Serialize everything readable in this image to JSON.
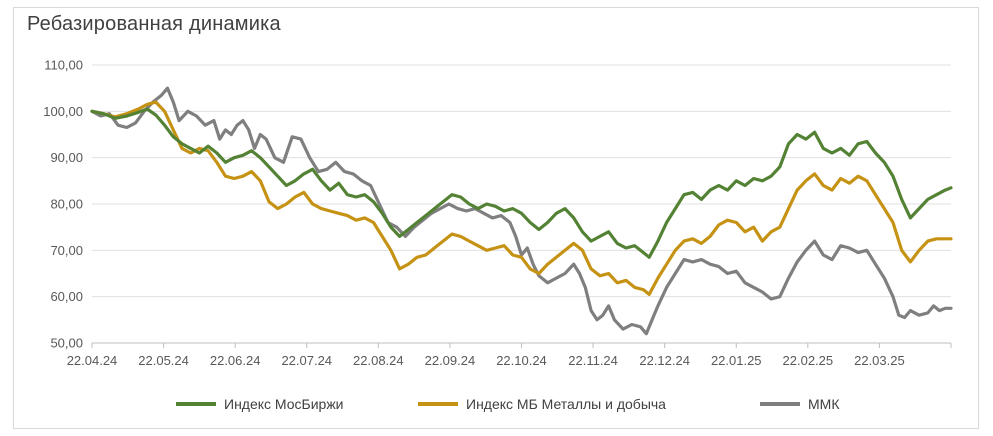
{
  "chart_data": {
    "type": "line",
    "title": "Ребазированная динамика",
    "xlabel": "",
    "ylabel": "",
    "ylim": [
      50,
      110
    ],
    "yticks": [
      "50,00",
      "60,00",
      "70,00",
      "80,00",
      "90,00",
      "100,00",
      "110,00"
    ],
    "x_tick_labels": [
      "22.04.24",
      "22.05.24",
      "22.06.24",
      "22.07.24",
      "22.08.24",
      "22.09.24",
      "22.10.24",
      "22.11.24",
      "22.12.24",
      "22.01.25",
      "22.02.25",
      "22.03.25"
    ],
    "grid": true,
    "legend_position": "bottom",
    "series": [
      {
        "name": "Индекс МосБиржи",
        "color": "#548235",
        "points": [
          [
            0,
            100
          ],
          [
            4,
            99.5
          ],
          [
            8,
            98.5
          ],
          [
            12,
            99
          ],
          [
            16,
            99.8
          ],
          [
            19,
            100.5
          ],
          [
            22,
            99.2
          ],
          [
            25,
            97
          ],
          [
            28,
            94.5
          ],
          [
            31,
            93
          ],
          [
            34,
            92
          ],
          [
            37,
            91
          ],
          [
            40,
            92.5
          ],
          [
            43,
            91
          ],
          [
            46,
            89
          ],
          [
            49,
            90
          ],
          [
            52,
            90.5
          ],
          [
            55,
            91.5
          ],
          [
            58,
            90
          ],
          [
            61,
            88
          ],
          [
            64,
            86
          ],
          [
            67,
            84
          ],
          [
            70,
            85
          ],
          [
            73,
            86.5
          ],
          [
            76,
            87.5
          ],
          [
            79,
            85
          ],
          [
            82,
            83
          ],
          [
            85,
            84.5
          ],
          [
            88,
            82
          ],
          [
            91,
            81.5
          ],
          [
            94,
            82
          ],
          [
            97,
            80.5
          ],
          [
            100,
            78
          ],
          [
            103,
            75
          ],
          [
            106,
            73
          ],
          [
            109,
            74.5
          ],
          [
            112,
            76
          ],
          [
            115,
            77.5
          ],
          [
            118,
            79
          ],
          [
            121,
            80.5
          ],
          [
            124,
            82
          ],
          [
            127,
            81.5
          ],
          [
            130,
            80
          ],
          [
            133,
            79
          ],
          [
            136,
            80
          ],
          [
            139,
            79.5
          ],
          [
            142,
            78.5
          ],
          [
            145,
            79
          ],
          [
            148,
            78
          ],
          [
            151,
            76
          ],
          [
            154,
            74.5
          ],
          [
            157,
            76
          ],
          [
            160,
            78
          ],
          [
            163,
            79
          ],
          [
            166,
            77
          ],
          [
            169,
            74
          ],
          [
            172,
            72
          ],
          [
            175,
            73
          ],
          [
            178,
            74
          ],
          [
            181,
            71.5
          ],
          [
            184,
            70.5
          ],
          [
            187,
            71
          ],
          [
            190,
            69.5
          ],
          [
            192,
            68.5
          ],
          [
            195,
            72
          ],
          [
            198,
            76
          ],
          [
            201,
            79
          ],
          [
            204,
            82
          ],
          [
            207,
            82.5
          ],
          [
            210,
            81
          ],
          [
            213,
            83
          ],
          [
            216,
            84
          ],
          [
            219,
            83
          ],
          [
            222,
            85
          ],
          [
            225,
            84
          ],
          [
            228,
            85.5
          ],
          [
            231,
            85
          ],
          [
            234,
            86
          ],
          [
            237,
            88
          ],
          [
            240,
            93
          ],
          [
            243,
            95
          ],
          [
            246,
            94
          ],
          [
            249,
            95.5
          ],
          [
            252,
            92
          ],
          [
            255,
            91
          ],
          [
            258,
            92
          ],
          [
            261,
            90.5
          ],
          [
            264,
            93
          ],
          [
            267,
            93.5
          ],
          [
            270,
            91
          ],
          [
            273,
            89
          ],
          [
            276,
            86
          ],
          [
            279,
            81
          ],
          [
            282,
            77
          ],
          [
            285,
            79
          ],
          [
            288,
            81
          ],
          [
            291,
            82
          ],
          [
            294,
            83
          ],
          [
            296,
            83.5
          ]
        ]
      },
      {
        "name": "Индекс МБ Металлы и добыча",
        "color": "#c69214",
        "points": [
          [
            0,
            100
          ],
          [
            4,
            99.5
          ],
          [
            8,
            98.8
          ],
          [
            12,
            99.5
          ],
          [
            16,
            100.5
          ],
          [
            19,
            101.5
          ],
          [
            22,
            102
          ],
          [
            25,
            100
          ],
          [
            28,
            96
          ],
          [
            31,
            92
          ],
          [
            34,
            91
          ],
          [
            37,
            92
          ],
          [
            40,
            91.5
          ],
          [
            43,
            89
          ],
          [
            46,
            86
          ],
          [
            49,
            85.5
          ],
          [
            52,
            86
          ],
          [
            55,
            87
          ],
          [
            58,
            85
          ],
          [
            61,
            80.5
          ],
          [
            64,
            79
          ],
          [
            67,
            80
          ],
          [
            70,
            81.5
          ],
          [
            73,
            82.5
          ],
          [
            76,
            80
          ],
          [
            79,
            79
          ],
          [
            82,
            78.5
          ],
          [
            85,
            78
          ],
          [
            88,
            77.5
          ],
          [
            91,
            76.5
          ],
          [
            94,
            77
          ],
          [
            97,
            76
          ],
          [
            100,
            73
          ],
          [
            103,
            70
          ],
          [
            106,
            66
          ],
          [
            109,
            67
          ],
          [
            112,
            68.5
          ],
          [
            115,
            69
          ],
          [
            118,
            70.5
          ],
          [
            121,
            72
          ],
          [
            124,
            73.5
          ],
          [
            127,
            73
          ],
          [
            130,
            72
          ],
          [
            133,
            71
          ],
          [
            136,
            70
          ],
          [
            139,
            70.5
          ],
          [
            142,
            71
          ],
          [
            145,
            69
          ],
          [
            148,
            68.5
          ],
          [
            151,
            66
          ],
          [
            154,
            65
          ],
          [
            157,
            67
          ],
          [
            160,
            68.5
          ],
          [
            163,
            70
          ],
          [
            166,
            71.5
          ],
          [
            169,
            70
          ],
          [
            172,
            66
          ],
          [
            175,
            64.5
          ],
          [
            178,
            65
          ],
          [
            181,
            63
          ],
          [
            184,
            63.5
          ],
          [
            187,
            62
          ],
          [
            190,
            61.5
          ],
          [
            192,
            60.5
          ],
          [
            195,
            64
          ],
          [
            198,
            67
          ],
          [
            201,
            70
          ],
          [
            204,
            72
          ],
          [
            207,
            72.5
          ],
          [
            210,
            71.5
          ],
          [
            213,
            73
          ],
          [
            216,
            75.5
          ],
          [
            219,
            76.5
          ],
          [
            222,
            76
          ],
          [
            225,
            74
          ],
          [
            228,
            75
          ],
          [
            231,
            72
          ],
          [
            234,
            74
          ],
          [
            237,
            75
          ],
          [
            240,
            79
          ],
          [
            243,
            83
          ],
          [
            246,
            85
          ],
          [
            249,
            86.5
          ],
          [
            252,
            84
          ],
          [
            255,
            83
          ],
          [
            258,
            85.5
          ],
          [
            261,
            84.5
          ],
          [
            264,
            86
          ],
          [
            267,
            85
          ],
          [
            270,
            82
          ],
          [
            273,
            79
          ],
          [
            276,
            76
          ],
          [
            279,
            70
          ],
          [
            282,
            67.5
          ],
          [
            285,
            70
          ],
          [
            288,
            72
          ],
          [
            291,
            72.5
          ],
          [
            294,
            72.5
          ],
          [
            296,
            72.5
          ]
        ]
      },
      {
        "name": "ММК",
        "color": "#7f7f7f",
        "points": [
          [
            0,
            100
          ],
          [
            3,
            99
          ],
          [
            6,
            99.5
          ],
          [
            9,
            97
          ],
          [
            12,
            96.5
          ],
          [
            15,
            97.5
          ],
          [
            18,
            100
          ],
          [
            21,
            102
          ],
          [
            24,
            103.5
          ],
          [
            26,
            105
          ],
          [
            28,
            102
          ],
          [
            30,
            98
          ],
          [
            33,
            100
          ],
          [
            36,
            99
          ],
          [
            39,
            97
          ],
          [
            42,
            98
          ],
          [
            44,
            94
          ],
          [
            46,
            96
          ],
          [
            48,
            95
          ],
          [
            50,
            97
          ],
          [
            52,
            98
          ],
          [
            54,
            96
          ],
          [
            56,
            92
          ],
          [
            58,
            95
          ],
          [
            60,
            94
          ],
          [
            63,
            90
          ],
          [
            66,
            89
          ],
          [
            69,
            94.5
          ],
          [
            72,
            94
          ],
          [
            75,
            90
          ],
          [
            78,
            87
          ],
          [
            81,
            87.5
          ],
          [
            84,
            89
          ],
          [
            87,
            87
          ],
          [
            90,
            86.5
          ],
          [
            93,
            85
          ],
          [
            96,
            84
          ],
          [
            99,
            80
          ],
          [
            102,
            76
          ],
          [
            105,
            75
          ],
          [
            108,
            73
          ],
          [
            111,
            75
          ],
          [
            114,
            76.5
          ],
          [
            117,
            78
          ],
          [
            120,
            79
          ],
          [
            123,
            80
          ],
          [
            126,
            79
          ],
          [
            129,
            78.5
          ],
          [
            132,
            79
          ],
          [
            135,
            78
          ],
          [
            138,
            77
          ],
          [
            141,
            77.5
          ],
          [
            144,
            76
          ],
          [
            146,
            73
          ],
          [
            148,
            69
          ],
          [
            150,
            70.5
          ],
          [
            152,
            67
          ],
          [
            154,
            64.5
          ],
          [
            157,
            63
          ],
          [
            160,
            64
          ],
          [
            163,
            65
          ],
          [
            166,
            67
          ],
          [
            168,
            65
          ],
          [
            170,
            62
          ],
          [
            172,
            57
          ],
          [
            174,
            55
          ],
          [
            176,
            56
          ],
          [
            178,
            58
          ],
          [
            180,
            55
          ],
          [
            183,
            53
          ],
          [
            186,
            54
          ],
          [
            189,
            53.5
          ],
          [
            191,
            52
          ],
          [
            193,
            55
          ],
          [
            195,
            58
          ],
          [
            198,
            62
          ],
          [
            201,
            65
          ],
          [
            204,
            68
          ],
          [
            207,
            67.5
          ],
          [
            210,
            68
          ],
          [
            213,
            67
          ],
          [
            216,
            66.5
          ],
          [
            219,
            65
          ],
          [
            222,
            65.5
          ],
          [
            225,
            63
          ],
          [
            228,
            62
          ],
          [
            231,
            61
          ],
          [
            234,
            59.5
          ],
          [
            237,
            60
          ],
          [
            240,
            64
          ],
          [
            243,
            67.5
          ],
          [
            246,
            70
          ],
          [
            249,
            72
          ],
          [
            252,
            69
          ],
          [
            255,
            68
          ],
          [
            258,
            71
          ],
          [
            261,
            70.5
          ],
          [
            264,
            69.5
          ],
          [
            267,
            70
          ],
          [
            270,
            67
          ],
          [
            273,
            64
          ],
          [
            276,
            60
          ],
          [
            278,
            56
          ],
          [
            280,
            55.5
          ],
          [
            282,
            57
          ],
          [
            285,
            56
          ],
          [
            288,
            56.5
          ],
          [
            290,
            58
          ],
          [
            292,
            57
          ],
          [
            294,
            57.5
          ],
          [
            296,
            57.5
          ]
        ]
      }
    ]
  }
}
